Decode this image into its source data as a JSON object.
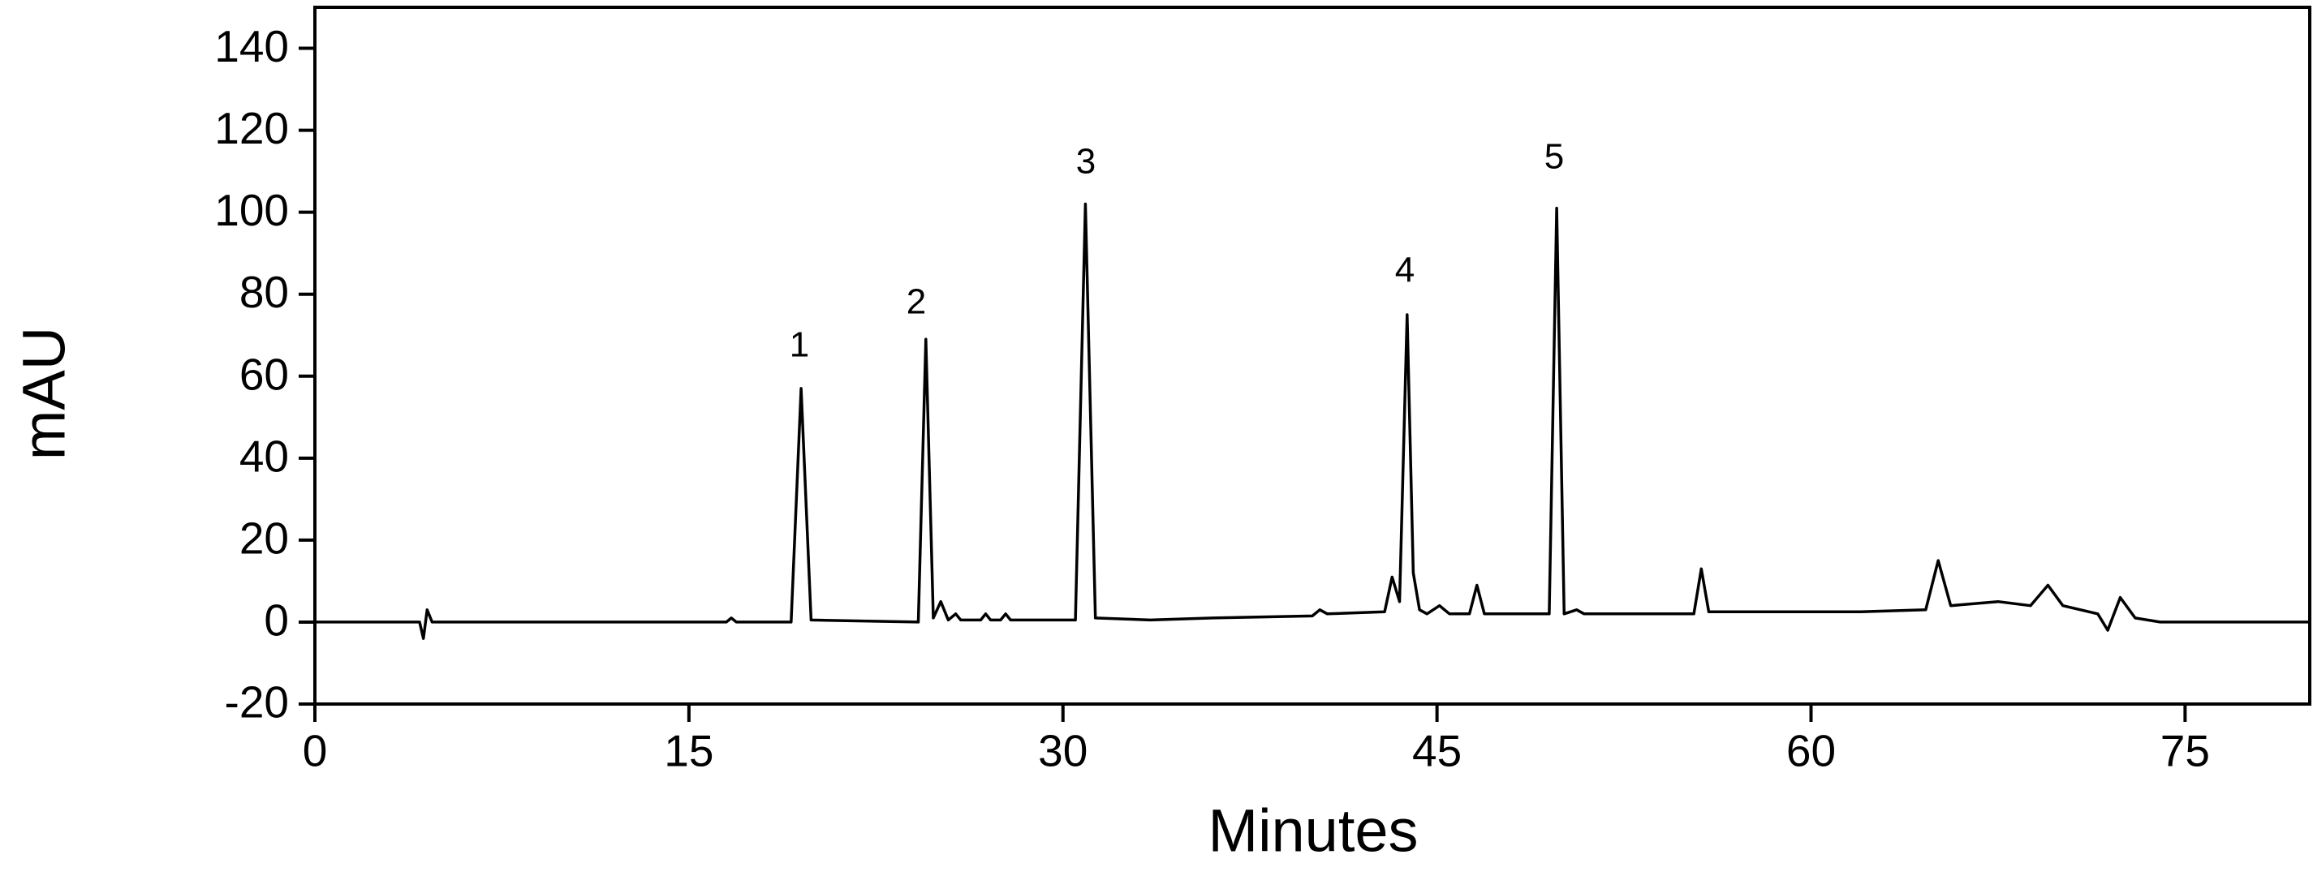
{
  "chart_data": {
    "type": "line",
    "xlabel": "Minutes",
    "ylabel": "mAU",
    "annotations": [
      "1",
      "2",
      "3",
      "4",
      "5"
    ],
    "x": [
      0,
      4.2,
      4.35,
      4.5,
      4.7,
      5.0,
      16.5,
      16.7,
      16.9,
      19.1,
      19.5,
      19.9,
      24.2,
      24.5,
      24.8,
      25.1,
      25.4,
      25.7,
      25.9,
      26.1,
      26.7,
      26.9,
      27.1,
      27.5,
      27.7,
      27.9,
      30.5,
      30.9,
      31.3,
      33.5,
      36,
      40,
      40.3,
      40.6,
      42.9,
      43.2,
      43.5,
      43.8,
      44.05,
      44.3,
      44.6,
      45.1,
      45.5,
      46.3,
      46.6,
      46.9,
      49.5,
      49.8,
      50.1,
      50.6,
      50.9,
      55.3,
      55.6,
      55.9,
      62,
      64.6,
      65.1,
      65.6,
      67.5,
      68.8,
      69.5,
      70.1,
      71.5,
      71.9,
      72.4,
      73,
      74,
      80
    ],
    "series": [
      {
        "color": "#000000",
        "values": [
          0,
          0,
          -4,
          3,
          0,
          0,
          0,
          1,
          0,
          0,
          57,
          0.5,
          0,
          69,
          1,
          5,
          0.5,
          2,
          0.5,
          0.5,
          0.5,
          2,
          0.5,
          0.5,
          2,
          0.5,
          0.5,
          102,
          1,
          0.5,
          1,
          1.5,
          3,
          2,
          2.5,
          11,
          5,
          75,
          12,
          3,
          2,
          4,
          2,
          2,
          9,
          2,
          2,
          101,
          2,
          3,
          2,
          2,
          13,
          2.5,
          2.5,
          3,
          15,
          4,
          5,
          4,
          9,
          4,
          2,
          -2,
          6,
          1,
          0,
          0
        ]
      }
    ],
    "xlim": [
      0,
      80
    ],
    "xticks": [
      0,
      15,
      30,
      45,
      60,
      75
    ],
    "ylim": [
      -20,
      150
    ],
    "yticks": [
      -20,
      0,
      20,
      40,
      60,
      80,
      100,
      120,
      140
    ]
  }
}
